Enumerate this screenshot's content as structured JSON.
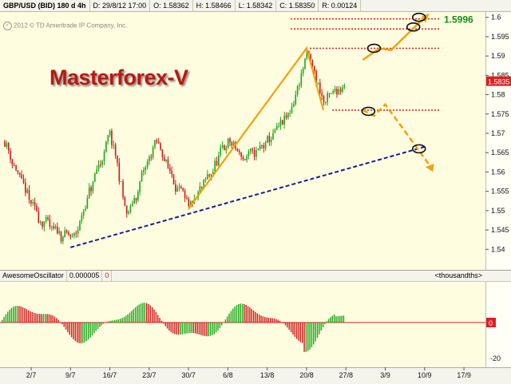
{
  "header": {
    "symbol": "GBP/USD (BID) 180 d 4h",
    "date": "D: 29/8/12 17:00",
    "open": "O: 1.58362",
    "high": "H: 1.58466",
    "low": "L: 1.58342",
    "close": "C: 1.58350",
    "range": "R: 0.00124"
  },
  "copyright": "2012 © TD Ameritrade IP Company, Inc.",
  "copyright_icon": "copyright-icon",
  "watermark": "Masterforex-V",
  "price_axis": {
    "ticks": [
      "1.6",
      "1.595",
      "1.59",
      "1.585",
      "1.58",
      "1.575",
      "1.57",
      "1.565",
      "1.56",
      "1.555",
      "1.55",
      "1.545",
      "1.54"
    ],
    "current_price": "1.5835",
    "target_label": "1.5996"
  },
  "oscillator": {
    "name": "AwesomeOscillator",
    "value": "0.000005",
    "flag": "0",
    "units": "<thousandths>",
    "ticks": [
      "0",
      "-20"
    ]
  },
  "date_axis": [
    "2/7",
    "9/7",
    "16/7",
    "23/7",
    "30/7",
    "6/8",
    "13/8",
    "20/8",
    "27/8",
    "3/9",
    "10/9",
    "17/9"
  ],
  "colors": {
    "up": "#1aa61a",
    "down": "#cc1a1a",
    "projection": "#f5a00c",
    "trendline": "#1a1a99",
    "target": "#e02020",
    "brand": "#b81818"
  },
  "chart_data": {
    "type": "candlestick",
    "series": [
      {
        "name": "GBP/USD (BID) 180 d 4h",
        "ohlc": []
      }
    ],
    "ylim": [
      1.538,
      1.602
    ],
    "xlabel": "",
    "ylabel": "",
    "grid": false,
    "price_points": [
      {
        "x": "9/7",
        "y": 1.541
      },
      {
        "x": "16/7",
        "y": 1.57
      },
      {
        "x": "19/7",
        "y": 1.548
      },
      {
        "x": "24/7",
        "y": 1.568
      },
      {
        "x": "30/7",
        "y": 1.55
      },
      {
        "x": "6/8",
        "y": 1.568
      },
      {
        "x": "9/8",
        "y": 1.563
      },
      {
        "x": "13/8",
        "y": 1.568
      },
      {
        "x": "17/8",
        "y": 1.575
      },
      {
        "x": "20/8",
        "y": 1.591
      },
      {
        "x": "23/8",
        "y": 1.578
      },
      {
        "x": "27/8",
        "y": 1.584
      }
    ],
    "trendline": [
      {
        "x": "9/7",
        "y": 1.5405
      },
      {
        "x": "10/9",
        "y": 1.5665
      }
    ],
    "projection_lines": [
      {
        "name": "upward",
        "points": [
          {
            "x": "30/7",
            "y": 1.5505
          },
          {
            "x": "20/8",
            "y": 1.592
          },
          {
            "x": "23/8",
            "y": 1.576
          }
        ]
      },
      {
        "name": "bull",
        "points": [
          {
            "x": "30/8",
            "y": 1.589
          },
          {
            "x": "2/9",
            "y": 1.592
          },
          {
            "x": "4/9",
            "y": 1.5915
          },
          {
            "x": "10/9",
            "y": 1.6
          }
        ]
      },
      {
        "name": "bear",
        "points": [
          {
            "x": "30/8",
            "y": 1.576
          },
          {
            "x": "1/9",
            "y": 1.5745
          },
          {
            "x": "3/9",
            "y": 1.5775
          },
          {
            "x": "11/9",
            "y": 1.5615
          }
        ]
      }
    ],
    "levels": [
      1.5996,
      1.597,
      1.592,
      1.576
    ],
    "target_circles": [
      {
        "x": "9/9",
        "y": 1.6
      },
      {
        "x": "8/9",
        "y": 1.5975
      },
      {
        "x": "1/9",
        "y": 1.592
      },
      {
        "x": "31/8",
        "y": 1.5757
      },
      {
        "x": "9/9",
        "y": 1.566
      }
    ],
    "oscillator_type": "histogram"
  }
}
